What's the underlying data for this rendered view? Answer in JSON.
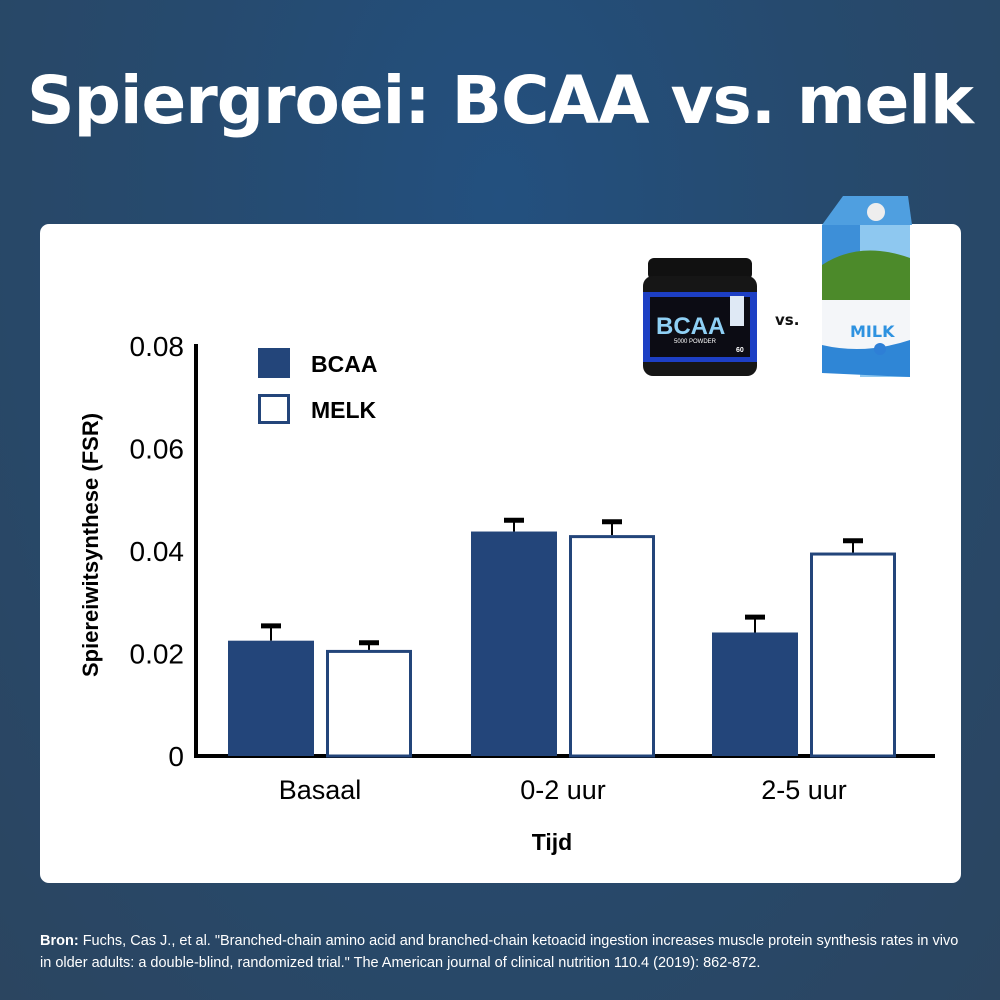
{
  "title": "Spiergroei: BCAA vs. melk",
  "images": {
    "bcaa_label": "BCAA",
    "bcaa_sub": "5000 POWDER",
    "bcaa_count": "60",
    "versus": "vs.",
    "milk_label": "MILK"
  },
  "chart_data": {
    "type": "bar",
    "categories": [
      "Basaal",
      "0-2 uur",
      "2-5 uur"
    ],
    "series": [
      {
        "name": "BCAA",
        "values": [
          0.0225,
          0.0438,
          0.0241
        ],
        "error": [
          0.0029,
          0.0022,
          0.003
        ],
        "color": "#23457a",
        "filled": true
      },
      {
        "name": "MELK",
        "values": [
          0.0207,
          0.0431,
          0.0397
        ],
        "error": [
          0.0014,
          0.0026,
          0.0023
        ],
        "color": "#23457a",
        "filled": false
      }
    ],
    "xlabel": "Tijd",
    "ylabel": "Spiereiwitsynthese (FSR)",
    "ylim": [
      0,
      0.08
    ],
    "yticks": [
      "0",
      "0.02",
      "0.04",
      "0.06",
      "0.08"
    ],
    "legend": "top-left",
    "grid": false
  },
  "source": {
    "label": "Bron:",
    "text": " Fuchs, Cas J., et al. \"Branched-chain amino acid and branched-chain ketoacid ingestion increases muscle protein synthesis rates in vivo in older adults: a double-blind, randomized trial.\" The American journal of clinical nutrition 110.4 (2019): 862-872."
  }
}
